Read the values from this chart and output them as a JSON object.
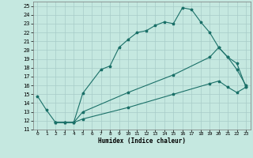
{
  "xlabel": "Humidex (Indice chaleur)",
  "xlim": [
    -0.5,
    23.5
  ],
  "ylim": [
    11,
    25.5
  ],
  "xticks": [
    0,
    1,
    2,
    3,
    4,
    5,
    6,
    7,
    8,
    9,
    10,
    11,
    12,
    13,
    14,
    15,
    16,
    17,
    18,
    19,
    20,
    21,
    22,
    23
  ],
  "yticks": [
    11,
    12,
    13,
    14,
    15,
    16,
    17,
    18,
    19,
    20,
    21,
    22,
    23,
    24,
    25
  ],
  "bg_color": "#c5e8e0",
  "grid_color": "#a8ccc8",
  "line_color": "#1a7068",
  "curve1_x": [
    0,
    1,
    2,
    3,
    4,
    5,
    7,
    8,
    9,
    10,
    11,
    12,
    13,
    14,
    15,
    16,
    17,
    18,
    19,
    20,
    21,
    22,
    23
  ],
  "curve1_y": [
    14.8,
    13.2,
    11.8,
    11.8,
    11.8,
    15.1,
    17.8,
    18.2,
    20.3,
    21.2,
    22.0,
    22.2,
    22.8,
    23.2,
    23.0,
    24.8,
    24.6,
    23.2,
    22.0,
    20.3,
    19.2,
    17.8,
    16.0
  ],
  "curve2_x": [
    2,
    3,
    4,
    5,
    10,
    15,
    19,
    20,
    21,
    22,
    23
  ],
  "curve2_y": [
    11.8,
    11.8,
    11.8,
    13.0,
    15.2,
    17.2,
    19.2,
    20.3,
    19.2,
    18.5,
    15.8
  ],
  "curve3_x": [
    2,
    3,
    4,
    5,
    10,
    15,
    19,
    20,
    21,
    22,
    23
  ],
  "curve3_y": [
    11.8,
    11.8,
    11.8,
    12.2,
    13.5,
    15.0,
    16.2,
    16.5,
    15.8,
    15.2,
    15.8
  ],
  "markersize": 2.5,
  "linewidth": 0.8
}
